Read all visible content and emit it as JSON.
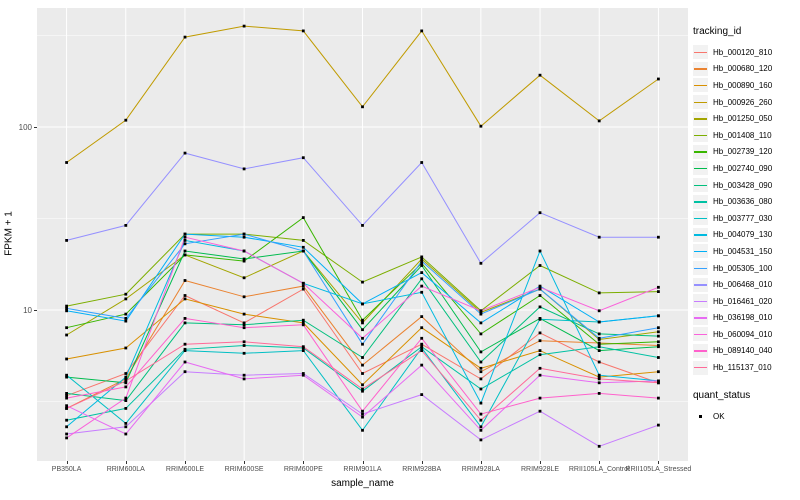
{
  "axes": {
    "x": {
      "title": "sample_name"
    },
    "y": {
      "title": "FPKM + 1",
      "tick_labels": [
        "100",
        "10"
      ],
      "tick_values": [
        100,
        10
      ]
    }
  },
  "legend": {
    "tracking_title": "tracking_id",
    "quant_title": "quant_status",
    "quant_items": [
      {
        "label": "OK",
        "marker": "black-square"
      }
    ]
  },
  "chart_data": {
    "type": "line",
    "title": "",
    "xlabel": "sample_name",
    "ylabel": "FPKM + 1",
    "yscale": "log10",
    "ylim": [
      1.5,
      480
    ],
    "grid": "on",
    "legend_position": "right",
    "point_marker": "black-square",
    "categories": [
      "PB350LA",
      "RRIM600LA",
      "RRIM600LE",
      "RRIM600SE",
      "RRIM600PE",
      "RRIM901LA",
      "RRIM928BA",
      "RRIM928LA",
      "RRIM928LE",
      "RRII105LA_Control",
      "RRII105LA_Stressed"
    ],
    "minor_gridline_values": [
      3.1623,
      31.623,
      316.23
    ],
    "series": [
      {
        "name": "Hb_000120_810",
        "color": "#F8766D",
        "values": [
          3.4,
          4.5,
          12.0,
          8.5,
          13.0,
          4.5,
          6.5,
          4.2,
          7.5,
          5.2,
          4.0
        ]
      },
      {
        "name": "Hb_000680_120",
        "color": "#EA8331",
        "values": [
          2.9,
          4.2,
          14.5,
          11.8,
          13.5,
          5.0,
          9.2,
          4.6,
          6.8,
          6.6,
          6.4
        ]
      },
      {
        "name": "Hb_000890_160",
        "color": "#D89000",
        "values": [
          5.4,
          6.2,
          11.5,
          9.5,
          8.5,
          3.9,
          8.0,
          4.8,
          6.0,
          4.3,
          4.6
        ]
      },
      {
        "name": "Hb_000926_260",
        "color": "#C09B00",
        "values": [
          64,
          109,
          310,
          356,
          335,
          129,
          335,
          101,
          192,
          108,
          183
        ]
      },
      {
        "name": "Hb_001250_050",
        "color": "#A3A500",
        "values": [
          7.3,
          11.5,
          20,
          15,
          21,
          8.5,
          19,
          9.7,
          13,
          6.9,
          7.6
        ]
      },
      {
        "name": "Hb_001408_110",
        "color": "#7CAE00",
        "values": [
          10.5,
          12.2,
          26,
          26,
          24,
          14.2,
          19.5,
          9.9,
          17.5,
          12.4,
          12.6
        ]
      },
      {
        "name": "Hb_002739_120",
        "color": "#39B600",
        "values": [
          8.0,
          9.5,
          20,
          18.5,
          32,
          8.8,
          18,
          7.4,
          12,
          6.5,
          6.7
        ]
      },
      {
        "name": "Hb_002740_090",
        "color": "#00BB4E",
        "values": [
          4.3,
          4.0,
          21,
          19,
          21,
          7.8,
          17.5,
          5.9,
          9.0,
          6.0,
          6.3
        ]
      },
      {
        "name": "Hb_003428_090",
        "color": "#00BF7D",
        "values": [
          3.5,
          3.2,
          8.5,
          8.3,
          8.8,
          5.5,
          14.8,
          5.2,
          10.4,
          7.4,
          7.2
        ]
      },
      {
        "name": "Hb_003636_080",
        "color": "#00C1A3",
        "values": [
          2.5,
          2.9,
          6.1,
          6.4,
          6.2,
          3.6,
          6.3,
          3.7,
          5.7,
          6.3,
          5.5
        ]
      },
      {
        "name": "Hb_003777_030",
        "color": "#00BFC4",
        "values": [
          4.4,
          2.4,
          6.0,
          5.8,
          6.0,
          2.2,
          6.2,
          2.3,
          8.9,
          8.6,
          9.3
        ]
      },
      {
        "name": "Hb_004079_130",
        "color": "#00BAE0",
        "values": [
          2.3,
          4.3,
          24,
          21,
          14,
          10.8,
          12.5,
          3.1,
          21,
          4.4,
          4.1
        ]
      },
      {
        "name": "Hb_004531_150",
        "color": "#00B0F6",
        "values": [
          9.9,
          8.7,
          26,
          25,
          22,
          10.8,
          16,
          8.5,
          13.5,
          8.6,
          9.3
        ]
      },
      {
        "name": "Hb_005305_100",
        "color": "#35A2FF",
        "values": [
          10.2,
          9.0,
          23,
          26,
          21,
          6.5,
          18.5,
          9.5,
          13,
          7.0,
          8.0
        ]
      },
      {
        "name": "Hb_006468_010",
        "color": "#9590FF",
        "values": [
          24,
          29,
          72,
          59,
          68,
          29,
          64,
          18,
          34,
          25,
          25
        ]
      },
      {
        "name": "Hb_016461_020",
        "color": "#C77CFF",
        "values": [
          2.1,
          2.3,
          4.6,
          4.4,
          4.5,
          2.7,
          3.45,
          1.95,
          2.8,
          1.8,
          2.35
        ]
      },
      {
        "name": "Hb_036198_010",
        "color": "#E76BF3",
        "values": [
          3.0,
          2.1,
          5.2,
          4.2,
          4.4,
          2.6,
          5.0,
          2.2,
          4.4,
          4.0,
          4.1
        ]
      },
      {
        "name": "Hb_060094_010",
        "color": "#FA62DB",
        "values": [
          2.0,
          3.3,
          25,
          21,
          14,
          7.0,
          13.5,
          9.9,
          13.3,
          9.9,
          13.3
        ]
      },
      {
        "name": "Hb_089140_040",
        "color": "#FF61CC",
        "values": [
          3.3,
          3.8,
          9.0,
          8.0,
          8.3,
          2.8,
          7.0,
          2.7,
          3.3,
          3.5,
          3.3
        ]
      },
      {
        "name": "Hb_115137_010",
        "color": "#FF6A98",
        "values": [
          2.9,
          4.1,
          6.5,
          6.7,
          6.3,
          3.7,
          6.0,
          2.5,
          4.8,
          4.2,
          4.0
        ]
      }
    ],
    "style": {
      "panel_background": "#EBEBEB",
      "gridline_color": "#FFFFFF",
      "point_color": "#000000",
      "axis_text_color": "#4D4D4D"
    }
  }
}
